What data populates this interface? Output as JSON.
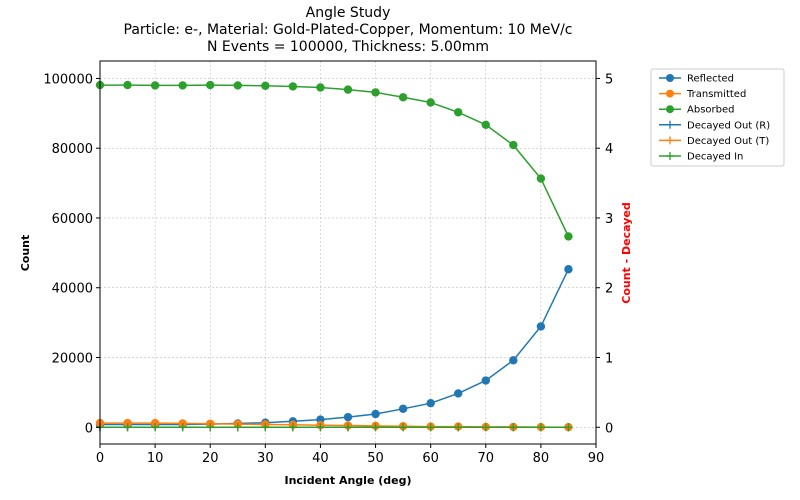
{
  "chart_data": {
    "type": "line",
    "title_lines": [
      "Angle Study",
      "Particle: e-, Material: Gold-Plated-Copper, Momentum: 10 MeV/c",
      "N Events = 100000, Thickness: 5.00mm"
    ],
    "xlabel": "Incident Angle (deg)",
    "ylabel": "Count",
    "ylabel_right": "Count - Decayed",
    "ylabel_right_color": "#ff0000",
    "xlim": [
      0,
      90
    ],
    "ylim": [
      -4800,
      105000
    ],
    "ylim_right": [
      -0.24,
      5.25
    ],
    "x_ticks": [
      0,
      10,
      20,
      30,
      40,
      50,
      60,
      70,
      80,
      90
    ],
    "y_ticks": [
      0,
      20000,
      40000,
      60000,
      80000,
      100000
    ],
    "y_ticks_right": [
      0,
      1,
      2,
      3,
      4,
      5
    ],
    "grid": true,
    "legend_placement": "outside-right-top",
    "x": [
      0,
      5,
      10,
      15,
      20,
      25,
      30,
      35,
      40,
      45,
      50,
      55,
      60,
      65,
      70,
      75,
      80,
      85
    ],
    "series": [
      {
        "name": "Reflected",
        "color": "#1f77b4",
        "marker": "circle",
        "axis": "left",
        "values": [
          800,
          800,
          800,
          800,
          900,
          1100,
          1300,
          1700,
          2200,
          2900,
          3800,
          5300,
          6900,
          9700,
          13400,
          19200,
          28900,
          45300
        ]
      },
      {
        "name": "Transmitted",
        "color": "#ff7f0e",
        "marker": "circle",
        "axis": "left",
        "values": [
          1200,
          1200,
          1200,
          1100,
          1000,
          900,
          800,
          700,
          600,
          500,
          400,
          300,
          200,
          200,
          100,
          100,
          50,
          30
        ]
      },
      {
        "name": "Absorbed",
        "color": "#2ca02c",
        "marker": "circle",
        "axis": "left",
        "values": [
          98100,
          98100,
          98000,
          98000,
          98100,
          98000,
          97900,
          97700,
          97400,
          96800,
          96000,
          94600,
          93100,
          90300,
          86700,
          80900,
          71300,
          54700
        ]
      },
      {
        "name": "Decayed Out (R)",
        "color": "#1f77b4",
        "marker": "plus",
        "axis": "right",
        "values": [
          0,
          0,
          0,
          0,
          0,
          0,
          0,
          0,
          0,
          0,
          0,
          0,
          0,
          0,
          0,
          0,
          0,
          0
        ]
      },
      {
        "name": "Decayed Out (T)",
        "color": "#ff7f0e",
        "marker": "plus",
        "axis": "right",
        "values": [
          0,
          0,
          0,
          0,
          0,
          0,
          0,
          0,
          0,
          0,
          0,
          0,
          0,
          0,
          0,
          0,
          0,
          0
        ]
      },
      {
        "name": "Decayed In",
        "color": "#2ca02c",
        "marker": "plus",
        "axis": "right",
        "values": [
          0,
          0,
          0,
          0,
          0,
          0,
          0,
          0,
          0,
          0,
          0,
          0,
          0,
          0,
          0,
          0,
          0,
          0
        ]
      }
    ]
  }
}
